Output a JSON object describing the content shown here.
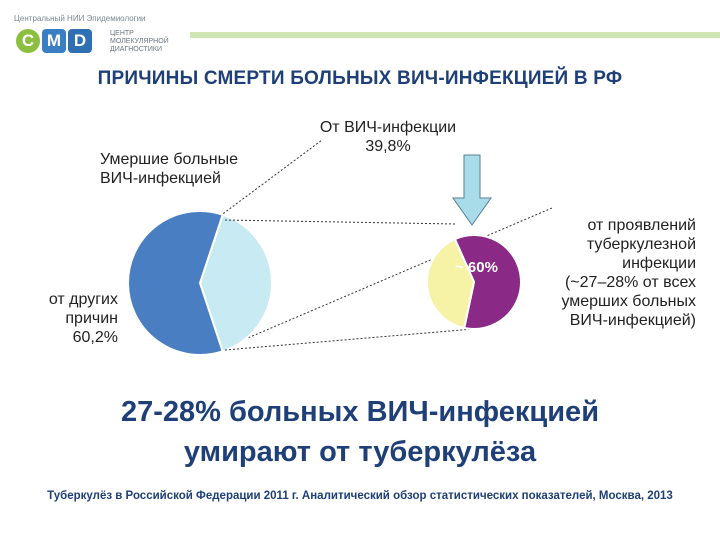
{
  "logo": {
    "top_text": "Центральный НИИ Эпидемиологии",
    "letters": [
      "C",
      "M",
      "D"
    ],
    "subtitle_lines": [
      "ЦЕНТР",
      "МОЛЕКУЛЯРНОЙ",
      "ДИАГНОСТИКИ"
    ]
  },
  "title": "ПРИЧИНЫ СМЕРТИ БОЛЬНЫХ ВИЧ-ИНФЕКЦИЕЙ В РФ",
  "chart_data": [
    {
      "type": "pie",
      "title": "Умершие больные ВИЧ-инфекцией",
      "slices": [
        {
          "label": "от других причин",
          "value": 60.2,
          "value_label": "60,2%",
          "color": "#4a7ec2"
        },
        {
          "label": "От ВИЧ-инфекции",
          "value": 39.8,
          "value_label": "39,8%",
          "color": "#c8eaf2"
        }
      ]
    },
    {
      "type": "pie",
      "title": "от проявлений туберкулезной инфекции (~27–28% от всех умерших больных ВИЧ-инфекцией)",
      "slices": [
        {
          "label": "от проявлений туберкулезной инфекции",
          "value": 60,
          "value_label": "~ 60%",
          "color": "#8b2a86"
        },
        {
          "label": "",
          "value": 40,
          "color": "#f6f2a6"
        }
      ]
    }
  ],
  "labels": {
    "main_title_lines": [
      "Умершие больные",
      "ВИЧ-инфекцией"
    ],
    "hiv_lines": [
      "От ВИЧ-инфекции",
      "39,8%"
    ],
    "other_lines": [
      "от других",
      "причин",
      "60,2%"
    ],
    "tb_value": "~ 60%",
    "tb_lines": [
      "от проявлений",
      "туберкулезной",
      "инфекции",
      "(~27–28% от всех",
      "умерших больных",
      "ВИЧ-инфекцией)"
    ]
  },
  "conclusion_lines": [
    "27-28% больных ВИЧ-инфекцией",
    "умирают от туберкулёза"
  ],
  "source": "Туберкулёз в Российской Федерации 2011 г. Аналитический обзор статистических показателей,  Москва, 2013",
  "colors": {
    "title": "#1e3f78",
    "arrow": "#a8dce8"
  }
}
